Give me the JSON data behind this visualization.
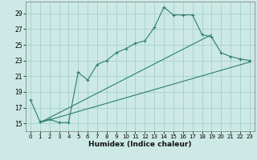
{
  "xlabel": "Humidex (Indice chaleur)",
  "ylabel": "",
  "xlim": [
    -0.5,
    23.5
  ],
  "ylim": [
    14,
    30.5
  ],
  "yticks": [
    15,
    17,
    19,
    21,
    23,
    25,
    27,
    29
  ],
  "xticks": [
    0,
    1,
    2,
    3,
    4,
    5,
    6,
    7,
    8,
    9,
    10,
    11,
    12,
    13,
    14,
    15,
    16,
    17,
    18,
    19,
    20,
    21,
    22,
    23
  ],
  "bg_color": "#cce9e5",
  "grid_color": "#aad4cf",
  "line_color": "#2e7d6e",
  "main_x": [
    0,
    1,
    2,
    3,
    4,
    5,
    6,
    7,
    8,
    9,
    10,
    11,
    12,
    13,
    14,
    15,
    16,
    17,
    18,
    19,
    20,
    21,
    22,
    23
  ],
  "main_y": [
    18.0,
    15.2,
    15.5,
    15.1,
    15.1,
    21.5,
    20.5,
    22.5,
    23.0,
    24.0,
    24.5,
    25.2,
    25.5,
    27.2,
    29.8,
    28.8,
    28.8,
    28.8,
    26.3,
    26.0,
    24.0,
    23.5,
    23.2,
    23.0
  ],
  "line2_x": [
    1,
    19
  ],
  "line2_y": [
    15.1,
    26.3
  ],
  "line3_x": [
    1,
    23
  ],
  "line3_y": [
    15.1,
    22.8
  ]
}
